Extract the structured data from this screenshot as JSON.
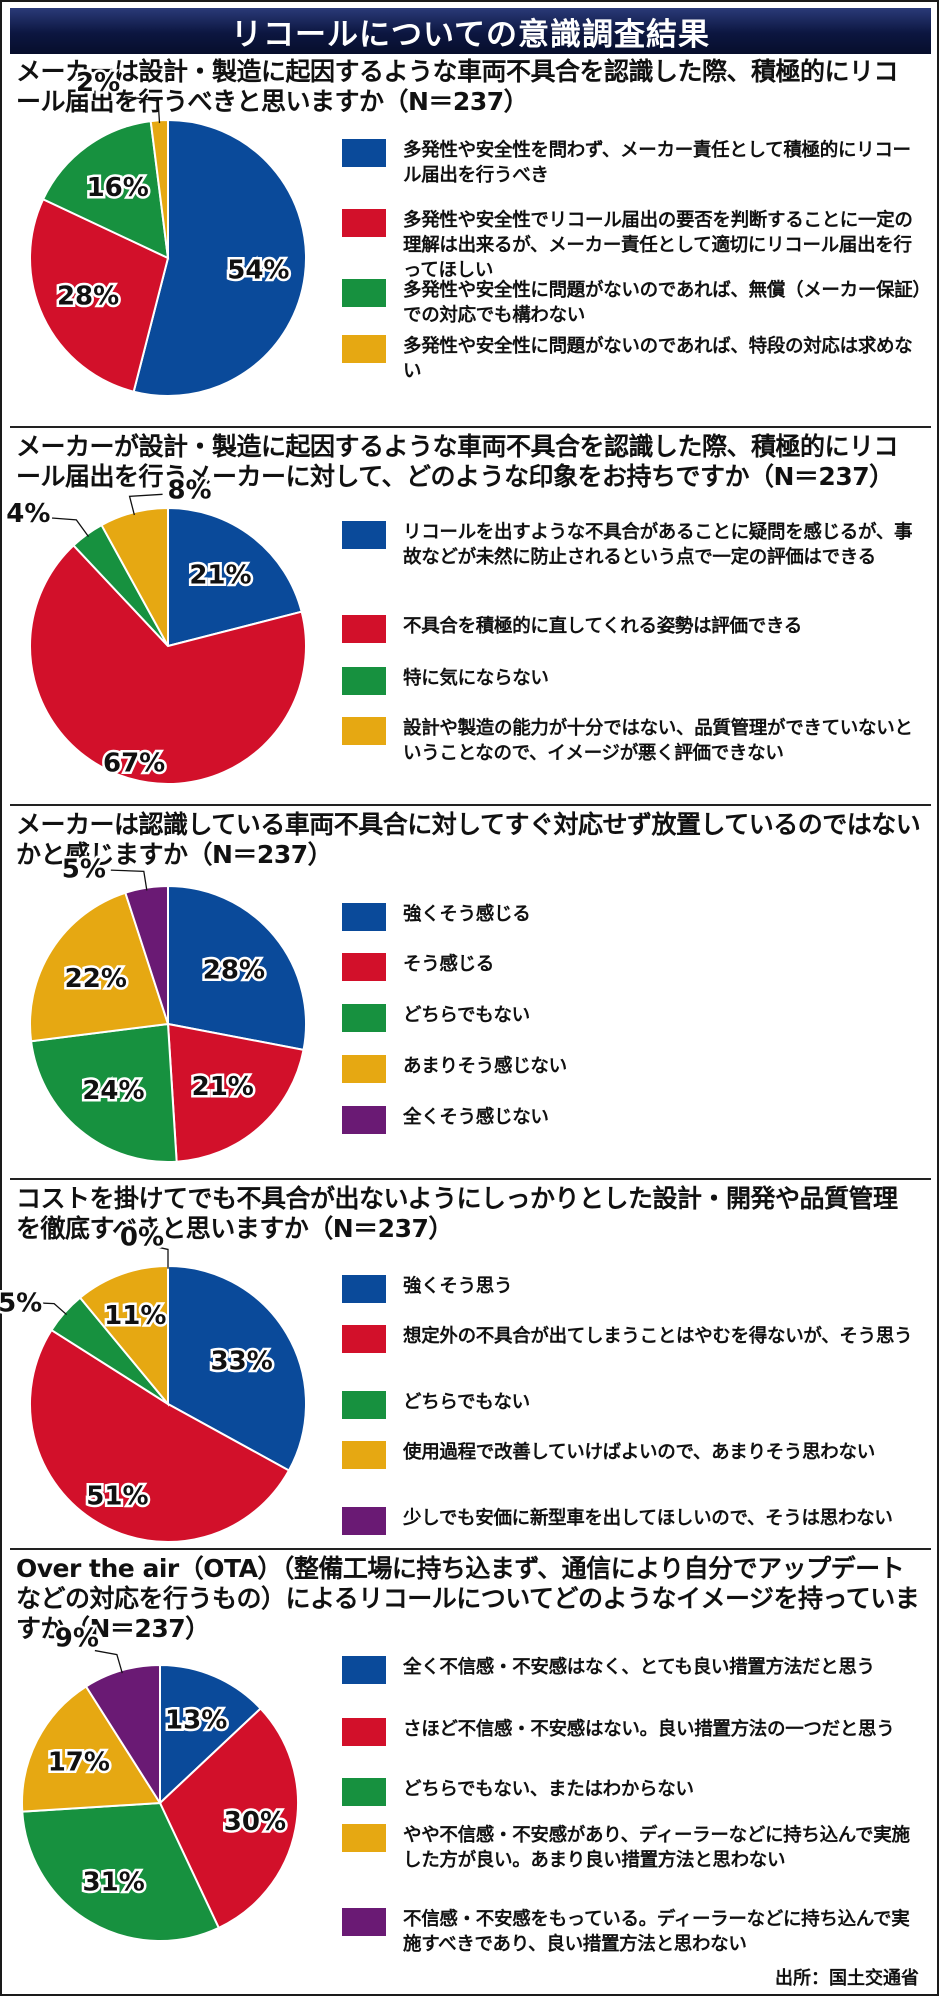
{
  "title": "リコールについての意識調査結果",
  "source": "出所：国土交通省",
  "colors": {
    "blue": "#0a4a9a",
    "red": "#d2102a",
    "green": "#17913f",
    "yellow": "#e6a812",
    "purple": "#6a1a74",
    "banner": "#0c1640"
  },
  "chart_data": [
    {
      "type": "pie",
      "title": "メーカーは設計・製造に起因するような車両不具合を認識した際、積極的にリコール届出を行うべきと思いますか（N＝237）",
      "categories": [
        "多発性や安全性を問わず、メーカー責任として積極的にリコール届出を行うべき",
        "多発性や安全性でリコール届出の要否を判断することに一定の理解は出来るが、メーカー責任として適切にリコール届出を行ってほしい",
        "多発性や安全性に問題がないのであれば、無償（メーカー保証）での対応でも構わない",
        "多発性や安全性に問題がないのであれば、特段の対応は求めない"
      ],
      "values": [
        54,
        28,
        16,
        2
      ],
      "labels": [
        "54%",
        "28%",
        "16%",
        "2%"
      ],
      "colors": [
        "#0a4a9a",
        "#d2102a",
        "#17913f",
        "#e6a812"
      ]
    },
    {
      "type": "pie",
      "title": "メーカーが設計・製造に起因するような車両不具合を認識した際、積極的にリコール届出を行うメーカーに対して、どのような印象をお持ちですか（N＝237）",
      "categories": [
        "リコールを出すような不具合があることに疑問を感じるが、事故などが未然に防止されるという点で一定の評価はできる",
        "不具合を積極的に直してくれる姿勢は評価できる",
        "特に気にならない",
        "設計や製造の能力が十分ではない、品質管理ができていないということなので、イメージが悪く評価できない"
      ],
      "values": [
        21,
        67,
        4,
        8
      ],
      "labels": [
        "21%",
        "67%",
        "4%",
        "8%"
      ],
      "colors": [
        "#0a4a9a",
        "#d2102a",
        "#17913f",
        "#e6a812"
      ]
    },
    {
      "type": "pie",
      "title": "メーカーは認識している車両不具合に対してすぐ対応せず放置しているのではないかと感じますか（N＝237）",
      "categories": [
        "強くそう感じる",
        "そう感じる",
        "どちらでもない",
        "あまりそう感じない",
        "全くそう感じない"
      ],
      "values": [
        28,
        21,
        24,
        22,
        5
      ],
      "labels": [
        "28%",
        "21%",
        "24%",
        "22%",
        "5%"
      ],
      "colors": [
        "#0a4a9a",
        "#d2102a",
        "#17913f",
        "#e6a812",
        "#6a1a74"
      ]
    },
    {
      "type": "pie",
      "title": "コストを掛けてでも不具合が出ないようにしっかりとした設計・開発や品質管理を徹底すべきと思いますか（N＝237）",
      "categories": [
        "強くそう思う",
        "想定外の不具合が出てしまうことはやむを得ないが、そう思う",
        "どちらでもない",
        "使用過程で改善していけばよいので、あまりそう思わない",
        "少しでも安価に新型車を出してほしいので、そうは思わない"
      ],
      "values": [
        33,
        51,
        5,
        11,
        0
      ],
      "labels": [
        "33%",
        "51%",
        "5%",
        "11%",
        "0%"
      ],
      "colors": [
        "#0a4a9a",
        "#d2102a",
        "#17913f",
        "#e6a812",
        "#6a1a74"
      ]
    },
    {
      "type": "pie",
      "title": "Over the air（OTA）（整備工場に持ち込まず、通信により自分でアップデートなどの対応を行うもの）によるリコールについてどのようなイメージを持っていますか（N＝237）",
      "categories": [
        "全く不信感・不安感はなく、とても良い措置方法だと思う",
        "さほど不信感・不安感はない。良い措置方法の一つだと思う",
        "どちらでもない、またはわからない",
        "やや不信感・不安感があり、ディーラーなどに持ち込んで実施した方が良い。あまり良い措置方法と思わない",
        "不信感・不安感をもっている。ディーラーなどに持ち込んで実施すべきであり、良い措置方法と思わない"
      ],
      "values": [
        13,
        30,
        31,
        17,
        9
      ],
      "labels": [
        "13%",
        "30%",
        "31%",
        "17%",
        "9%"
      ],
      "colors": [
        "#0a4a9a",
        "#d2102a",
        "#17913f",
        "#e6a812",
        "#6a1a74"
      ]
    }
  ]
}
